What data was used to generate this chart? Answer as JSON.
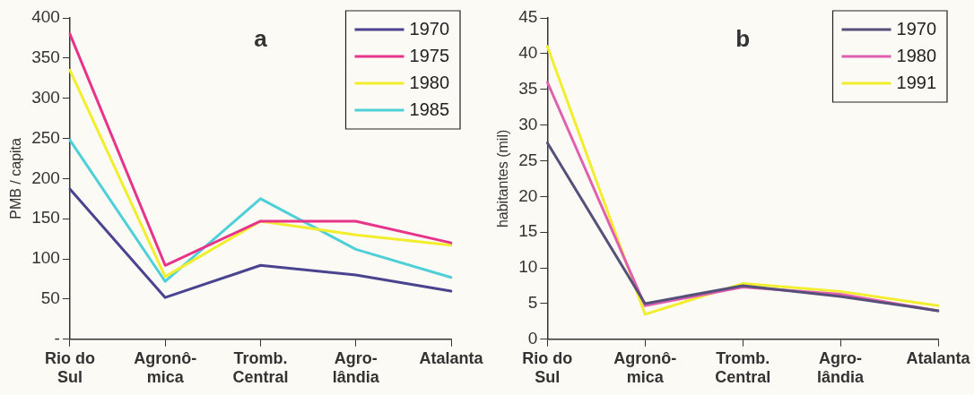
{
  "chart_data": [
    {
      "type": "line",
      "title": "a",
      "ylabel": "PMB / capita",
      "categories": [
        "Rio do\nSul",
        "Agronô-\nmica",
        "Tromb.\nCentral",
        "Agro-\nlândia",
        "Atalanta"
      ],
      "series": [
        {
          "name": "1970",
          "color": "#4a4390",
          "values": [
            187,
            52,
            92,
            80,
            60
          ]
        },
        {
          "name": "1975",
          "color": "#e8338a",
          "values": [
            380,
            92,
            147,
            147,
            120
          ]
        },
        {
          "name": "1980",
          "color": "#f2ee2e",
          "values": [
            335,
            78,
            147,
            130,
            117
          ]
        },
        {
          "name": "1985",
          "color": "#4fcfd8",
          "values": [
            248,
            72,
            175,
            112,
            77
          ]
        }
      ],
      "ylim": [
        0,
        400
      ],
      "yticks": [
        {
          "value": 0,
          "label": "-"
        },
        50,
        100,
        150,
        200,
        250,
        300,
        350,
        400
      ],
      "grid": false,
      "legend": "top right",
      "marker": "none",
      "line_style": "solid"
    },
    {
      "type": "line",
      "title": "b",
      "ylabel": "habitantes (mil)",
      "categories": [
        "Rio do\nSul",
        "Agronô-\nmica",
        "Tromb.\nCentral",
        "Agro-\nlândia",
        "Atalanta"
      ],
      "series": [
        {
          "name": "1970",
          "color": "#55507a",
          "values": [
            27.5,
            5,
            7.5,
            6,
            4
          ]
        },
        {
          "name": "1980",
          "color": "#e060b0",
          "values": [
            36,
            4.7,
            7.3,
            6.3,
            4
          ]
        },
        {
          "name": "1991",
          "color": "#f2ee2e",
          "values": [
            41,
            3.5,
            7.8,
            6.7,
            4.7
          ]
        }
      ],
      "ylim": [
        0,
        45
      ],
      "yticks": [
        0,
        5,
        10,
        15,
        20,
        25,
        30,
        35,
        40,
        45
      ],
      "grid": false,
      "legend": "top right",
      "marker": "none",
      "line_style": "solid"
    }
  ]
}
